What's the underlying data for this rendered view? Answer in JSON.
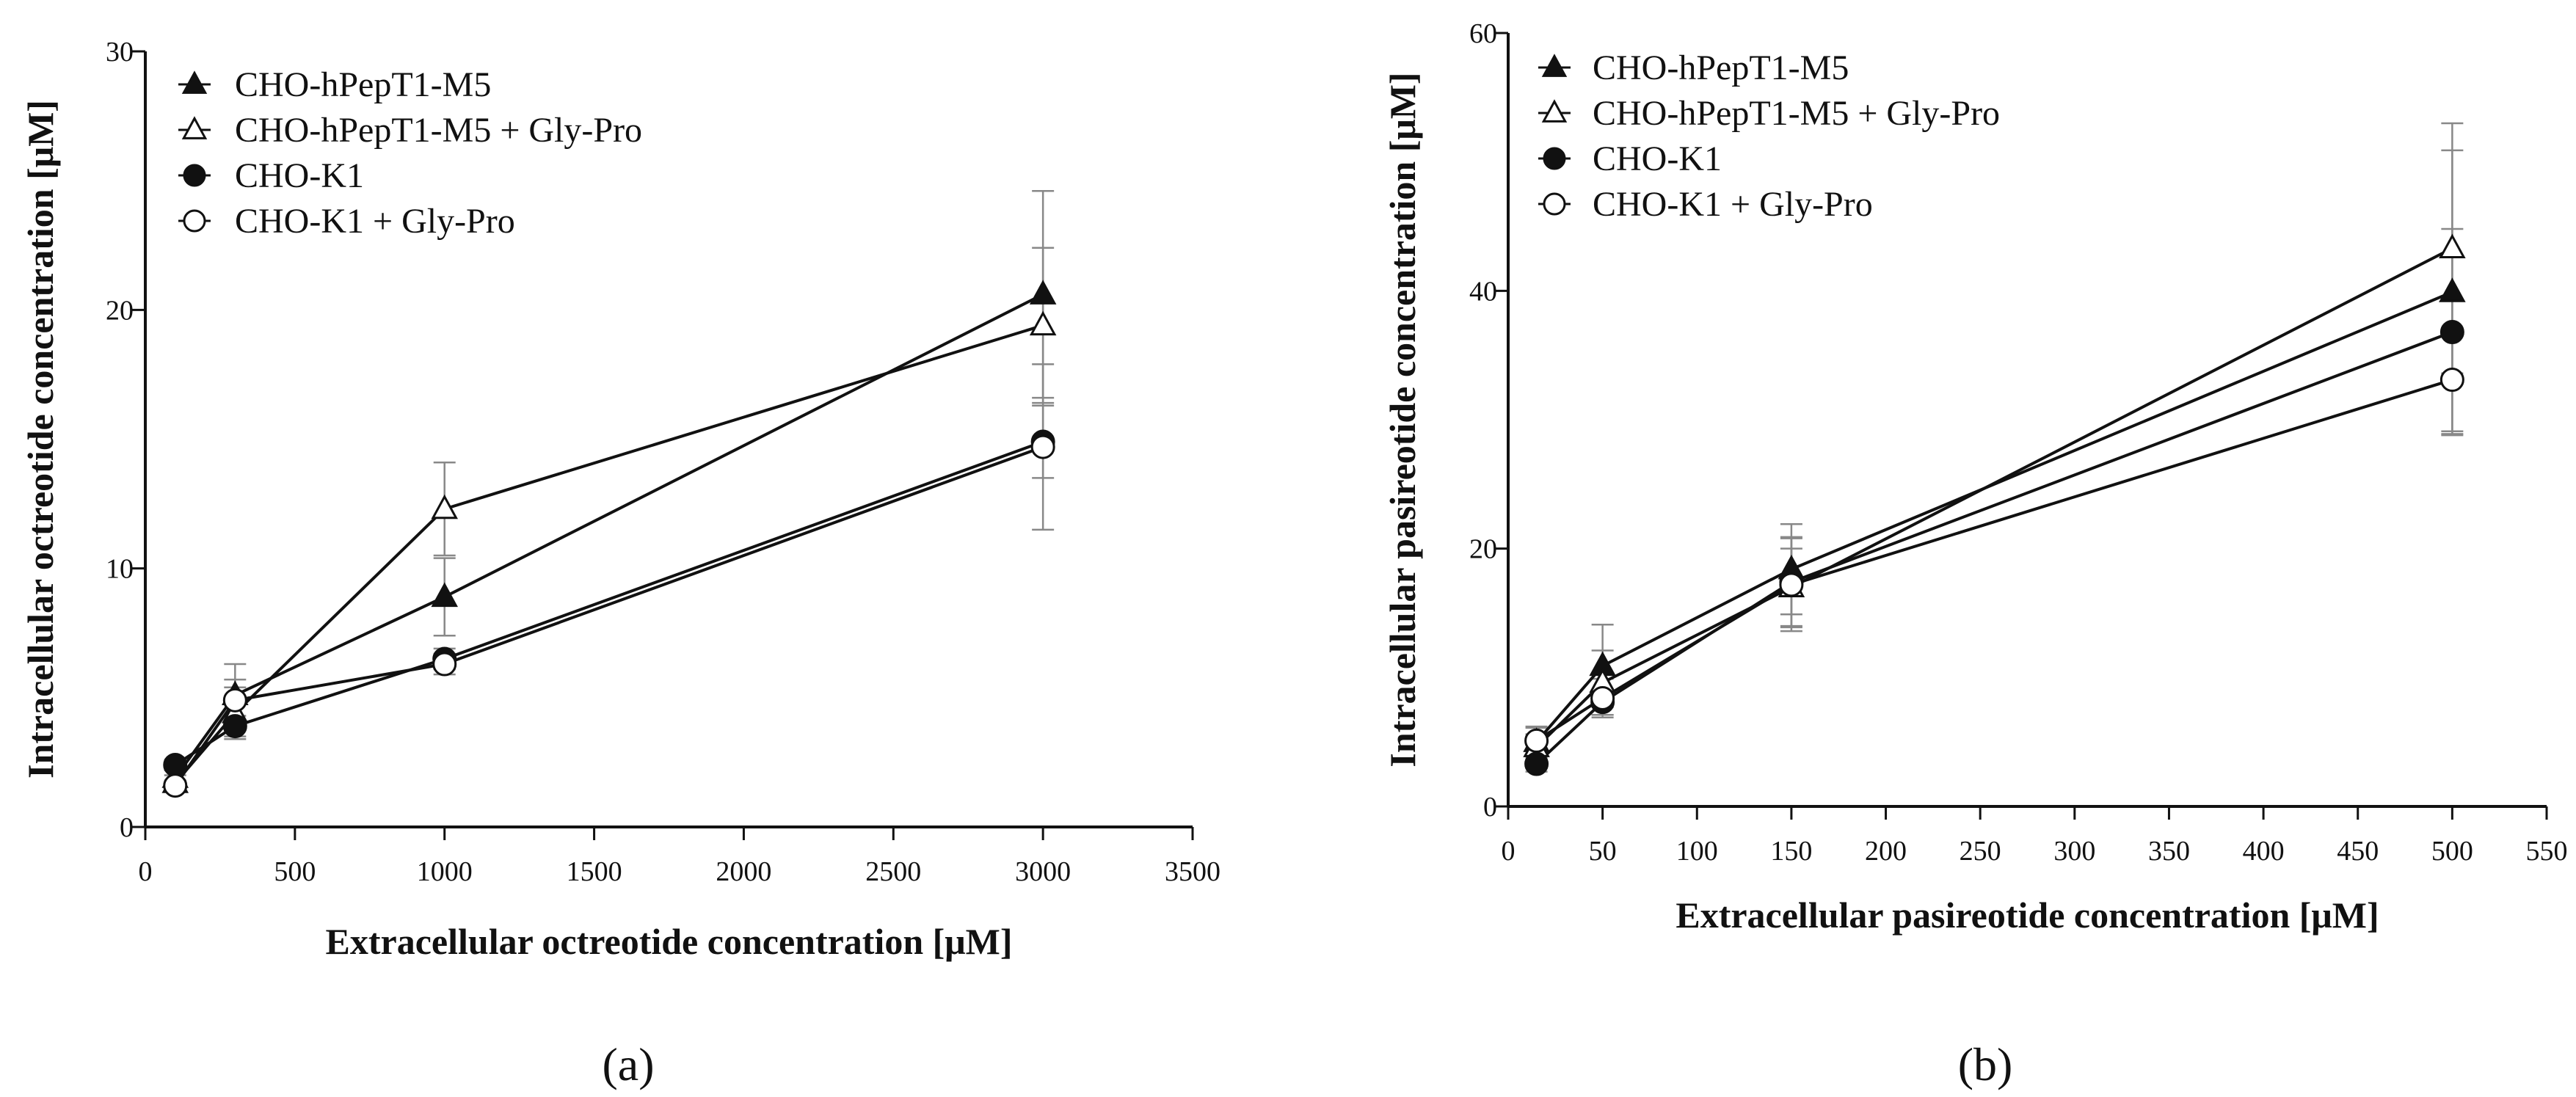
{
  "chart_data": [
    {
      "panel": "a",
      "type": "line",
      "title": "",
      "xlabel": "Extracellular octreotide concentration [μM]",
      "ylabel": "Intracellular octreotide concentration [μM]",
      "xlim": [
        0,
        3500
      ],
      "ylim": [
        0,
        30
      ],
      "xticks": [
        0,
        500,
        1000,
        1500,
        2000,
        2500,
        3000,
        3500
      ],
      "yticks": [
        0,
        10,
        20,
        30
      ],
      "legend_position": "top-left",
      "series": [
        {
          "name": "CHO-hPepT1-M5",
          "marker": "triangle-filled",
          "x": [
            100,
            300,
            1000,
            3000
          ],
          "y": [
            1.9,
            5.1,
            8.9,
            20.6
          ],
          "err": [
            0.3,
            1.2,
            1.5,
            4.0
          ]
        },
        {
          "name": "CHO-hPepT1-M5 + Gly-Pro",
          "marker": "triangle-open",
          "x": [
            100,
            300,
            1000,
            3000
          ],
          "y": [
            1.7,
            4.4,
            12.3,
            19.4
          ],
          "err": [
            0.3,
            1.0,
            1.8,
            3.0
          ]
        },
        {
          "name": "CHO-K1",
          "marker": "circle-filled",
          "x": [
            100,
            300,
            1000,
            3000
          ],
          "y": [
            2.4,
            3.9,
            6.5,
            14.9
          ],
          "err": [
            0.2,
            0.4,
            0.4,
            1.4
          ]
        },
        {
          "name": "CHO-K1 + Gly-Pro",
          "marker": "circle-open",
          "x": [
            100,
            300,
            1000,
            3000
          ],
          "y": [
            1.6,
            4.9,
            6.3,
            14.7
          ],
          "err": [
            0.2,
            0.8,
            0.4,
            3.2
          ]
        }
      ]
    },
    {
      "panel": "b",
      "type": "line",
      "title": "",
      "xlabel": "Extracellular pasireotide concentration [μM]",
      "ylabel": "Intracellular pasireotide concentration [μM]",
      "xlim": [
        0,
        550
      ],
      "ylim": [
        0,
        60
      ],
      "xticks": [
        0,
        50,
        100,
        150,
        200,
        250,
        300,
        350,
        400,
        450,
        500,
        550
      ],
      "yticks": [
        0,
        20,
        40,
        60
      ],
      "legend_position": "top-left",
      "series": [
        {
          "name": "CHO-hPepT1-M5",
          "marker": "triangle-filled",
          "x": [
            15,
            50,
            150,
            500
          ],
          "y": [
            5.0,
            10.9,
            18.4,
            39.9
          ],
          "err": [
            1.2,
            3.2,
            3.5,
            11.0
          ]
        },
        {
          "name": "CHO-hPepT1-M5 + Gly-Pro",
          "marker": "triangle-open",
          "x": [
            15,
            50,
            150,
            500
          ],
          "y": [
            4.6,
            9.6,
            17.0,
            43.3
          ],
          "err": [
            1.0,
            2.5,
            3.0,
            9.7
          ]
        },
        {
          "name": "CHO-K1",
          "marker": "circle-filled",
          "x": [
            15,
            50,
            150,
            500
          ],
          "y": [
            3.3,
            8.1,
            17.4,
            36.8
          ],
          "err": [
            0.6,
            1.0,
            3.5,
            8.0
          ]
        },
        {
          "name": "CHO-K1 + Gly-Pro",
          "marker": "circle-open",
          "x": [
            15,
            50,
            150,
            500
          ],
          "y": [
            5.1,
            8.4,
            17.2,
            33.1
          ],
          "err": [
            1.0,
            1.5,
            3.6,
            4.0
          ]
        }
      ]
    }
  ],
  "panel_labels": [
    "(a)",
    "(b)"
  ],
  "colors": {
    "line": "#111111",
    "errorbar": "#888888",
    "axis": "#111111"
  }
}
